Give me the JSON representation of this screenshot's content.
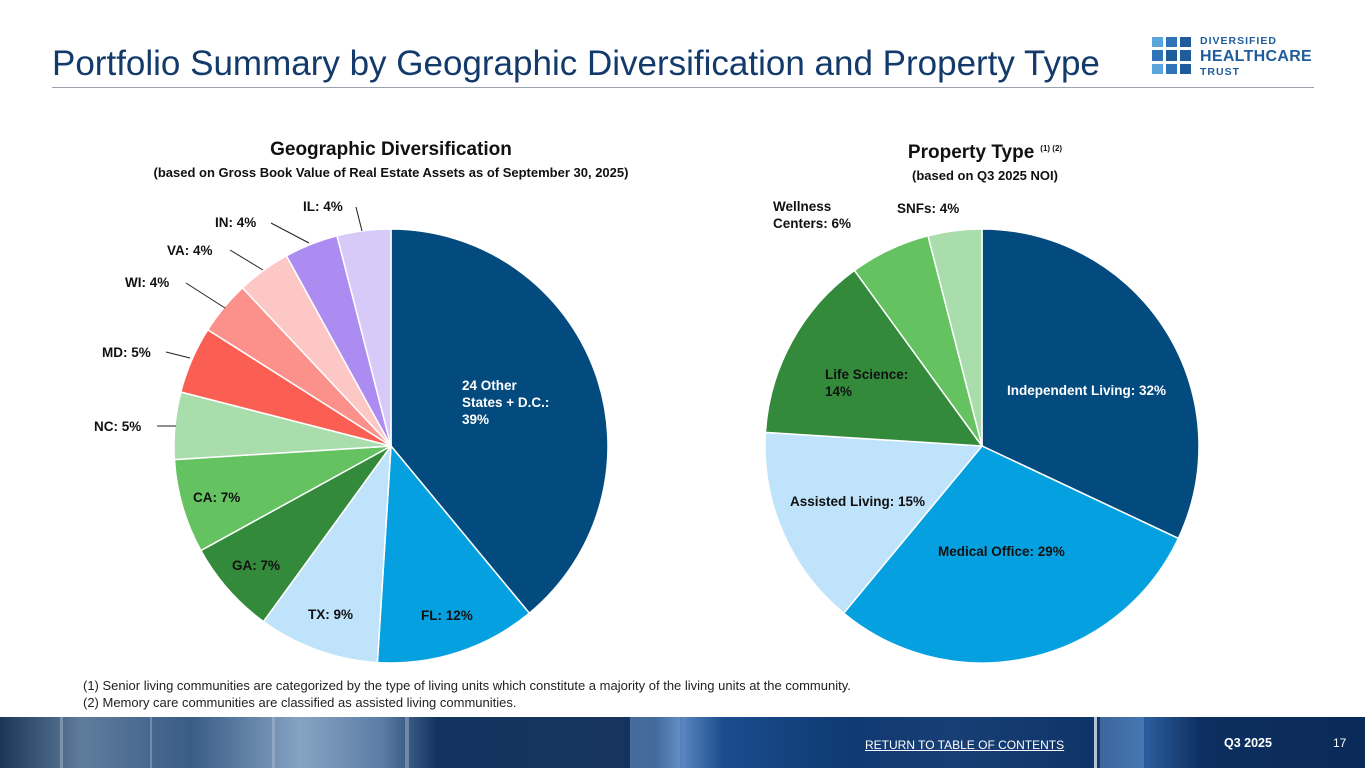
{
  "page": {
    "title": "Portfolio Summary by Geographic Diversification and Property Type"
  },
  "logo": {
    "line1": "DIVERSIFIED",
    "line2": "HEALTHCARE",
    "line3": "TRUST",
    "color": "#1e5c9c"
  },
  "chart_data": [
    {
      "type": "pie",
      "title": "Geographic Diversification",
      "subtitle": "(based on Gross Book Value of Real Estate Assets as of September 30, 2025)",
      "slices": [
        {
          "label": "24 Other States + D.C.:",
          "value_text": "39%",
          "value": 39,
          "color": "#034a7f",
          "text_color": "#ffffff"
        },
        {
          "label": "FL:",
          "value_text": "12%",
          "value": 12,
          "color": "#05a0e0",
          "text_color": "#111111"
        },
        {
          "label": "TX:",
          "value_text": "9%",
          "value": 9,
          "color": "#bfe3fb",
          "text_color": "#111111"
        },
        {
          "label": "GA:",
          "value_text": "7%",
          "value": 7,
          "color": "#338a3b",
          "text_color": "#111111"
        },
        {
          "label": "CA:",
          "value_text": "7%",
          "value": 7,
          "color": "#65c261",
          "text_color": "#111111"
        },
        {
          "label": "NC:",
          "value_text": "5%",
          "value": 5,
          "color": "#a9ddab",
          "text_color": "#111111"
        },
        {
          "label": "MD:",
          "value_text": "5%",
          "value": 5,
          "color": "#fb5e52",
          "text_color": "#111111"
        },
        {
          "label": "WI:",
          "value_text": "4%",
          "value": 4,
          "color": "#fb918a",
          "text_color": "#111111"
        },
        {
          "label": "VA:",
          "value_text": "4%",
          "value": 4,
          "color": "#fdc7c6",
          "text_color": "#111111"
        },
        {
          "label": "IN:",
          "value_text": "4%",
          "value": 4,
          "color": "#ac8cf1",
          "text_color": "#111111"
        },
        {
          "label": "IL:",
          "value_text": "4%",
          "value": 4,
          "color": "#d7c9f8",
          "text_color": "#111111"
        }
      ]
    },
    {
      "type": "pie",
      "title": "Property Type",
      "title_superscript": "(1) (2)",
      "subtitle": "(based on Q3 2025 NOI)",
      "slices": [
        {
          "label": "Independent Living:",
          "value_text": "32%",
          "value": 32,
          "color": "#034a7f",
          "text_color": "#ffffff"
        },
        {
          "label": "Medical Office:",
          "value_text": "29%",
          "value": 29,
          "color": "#05a0e0",
          "text_color": "#111111"
        },
        {
          "label": "Assisted Living:",
          "value_text": "15%",
          "value": 15,
          "color": "#bfe3fb",
          "text_color": "#111111"
        },
        {
          "label": "Life Science:",
          "value_text": "14%",
          "value": 14,
          "color": "#338a3b",
          "text_color": "#111111"
        },
        {
          "label": "Wellness Centers:",
          "value_text": "6%",
          "value": 6,
          "color": "#65c261",
          "text_color": "#111111"
        },
        {
          "label": "SNFs:",
          "value_text": "4%",
          "value": 4,
          "color": "#a9ddab",
          "text_color": "#111111"
        }
      ]
    }
  ],
  "footnotes": [
    "(1)  Senior living communities are categorized by the type of living units which constitute a majority of the living units at the community.",
    "(2)  Memory care communities are classified as assisted living communities."
  ],
  "footer": {
    "return_link": "RETURN TO TABLE OF CONTENTS",
    "quarter": "Q3 2025",
    "page_number": "17"
  }
}
